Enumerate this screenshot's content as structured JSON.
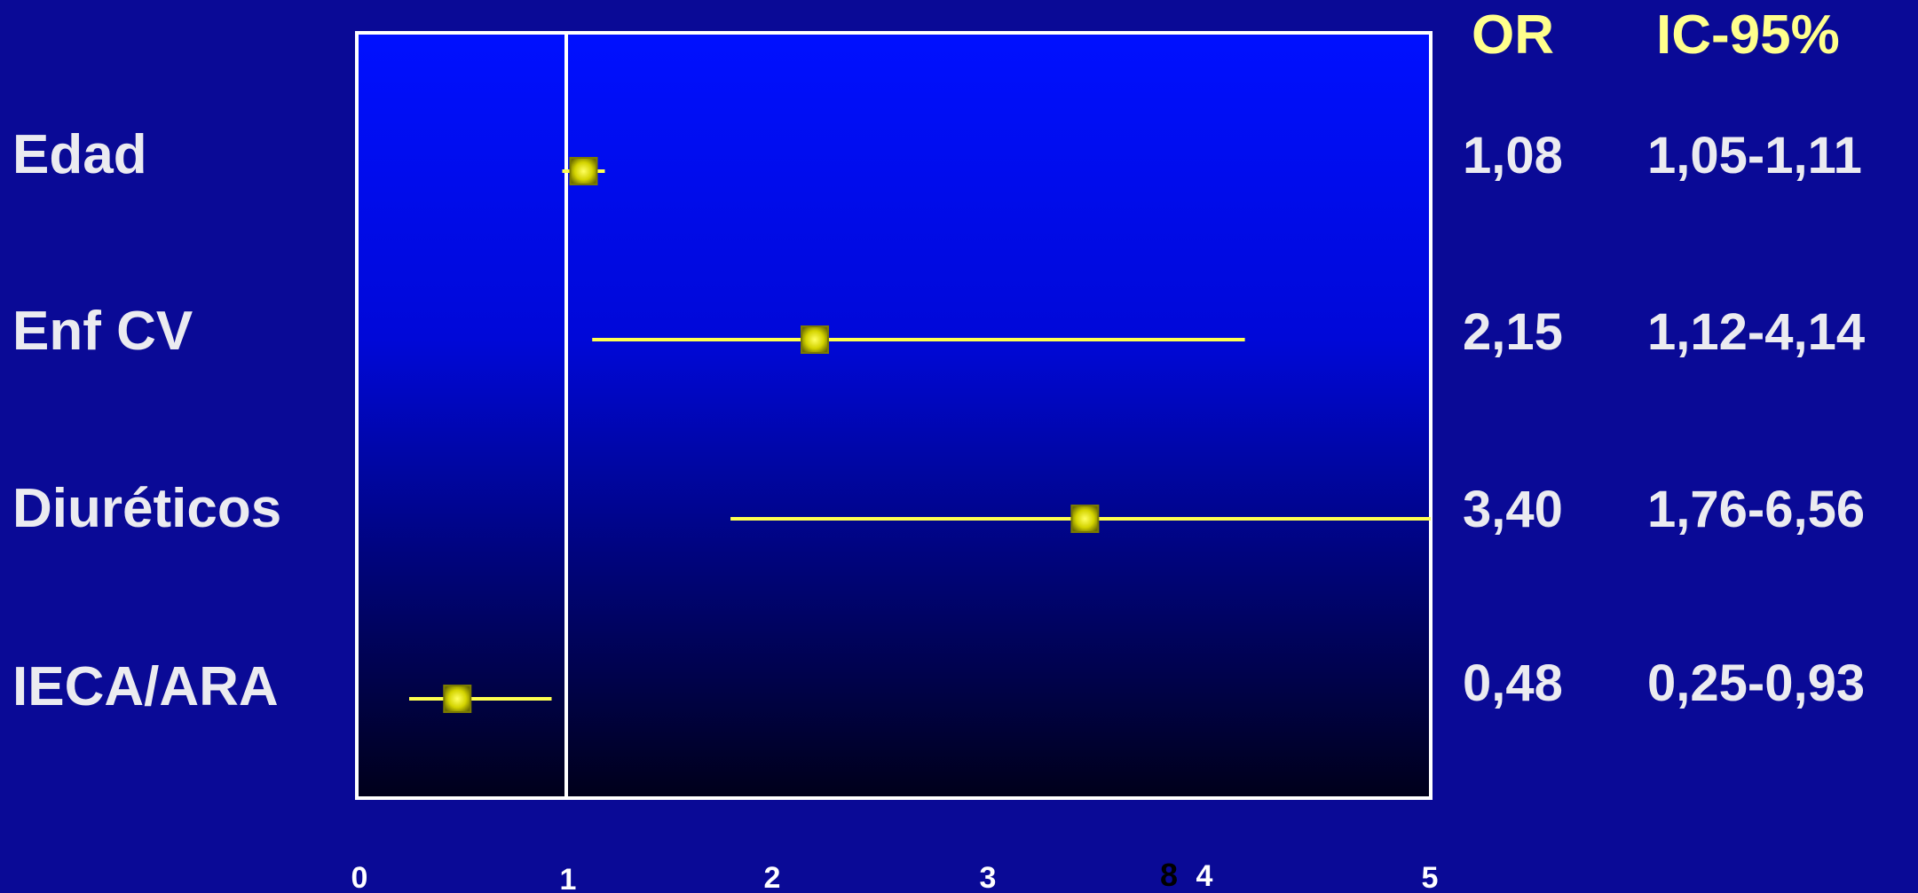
{
  "chart_data": {
    "type": "scatter",
    "subtype": "forest-plot",
    "title": "",
    "xlabel": "",
    "ylabel": "",
    "xlim": [
      0,
      5
    ],
    "reference_line": 1,
    "x_ticks": [
      "0",
      "1",
      "2",
      "3",
      "4",
      "5"
    ],
    "x_tick_extra": "8",
    "column_headers": {
      "or": "OR",
      "ci": "IC-95%"
    },
    "rows": [
      {
        "label": "Edad",
        "or": 1.08,
        "ci_low": 1.05,
        "ci_high": 1.11,
        "or_text": "1,08",
        "ci_text": "1,05-1,11"
      },
      {
        "label": "Enf CV",
        "or": 2.15,
        "ci_low": 1.12,
        "ci_high": 4.14,
        "or_text": "2,15",
        "ci_text": "1,12-4,14"
      },
      {
        "label": "Diuréticos",
        "or": 3.4,
        "ci_low": 1.76,
        "ci_high": 6.56,
        "or_text": "3,40",
        "ci_text": "1,76-6,56"
      },
      {
        "label": "IECA/ARA",
        "or": 0.48,
        "ci_low": 0.25,
        "ci_high": 0.93,
        "or_text": "0,48",
        "ci_text": "0,25-0,93"
      }
    ],
    "colors": {
      "background": "#0a0a96",
      "plot_top": "#0010ff",
      "plot_bottom": "#00001a",
      "frame": "#ffffff",
      "ci_line": "#ffff50",
      "marker": "#c8c800",
      "row_label": "#ebebf0",
      "header": "#ffff8c"
    }
  }
}
